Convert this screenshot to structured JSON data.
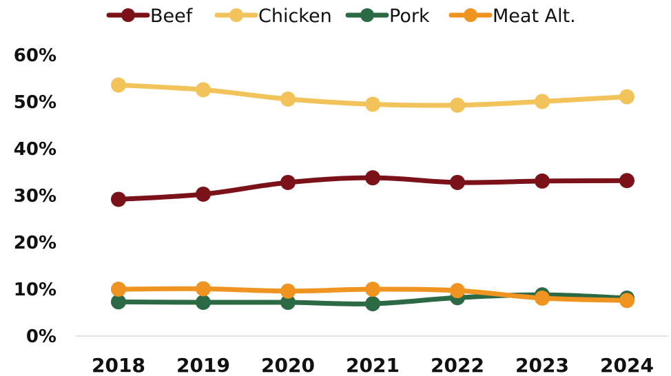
{
  "chart_data": {
    "type": "line",
    "x": [
      "2018",
      "2019",
      "2020",
      "2021",
      "2022",
      "2023",
      "2024"
    ],
    "yticks": [
      "0%",
      "10%",
      "20%",
      "30%",
      "40%",
      "50%",
      "60%"
    ],
    "ylim": [
      0,
      60
    ],
    "legend_position": "top",
    "grid": false,
    "series": [
      {
        "name": "Beef",
        "color": "#7b1219",
        "values": [
          29.2,
          30.3,
          32.8,
          33.8,
          32.8,
          33.1,
          33.2
        ]
      },
      {
        "name": "Chicken",
        "color": "#f2c35a",
        "values": [
          53.6,
          52.6,
          50.6,
          49.5,
          49.3,
          50.1,
          51.1
        ]
      },
      {
        "name": "Pork",
        "color": "#2c6a45",
        "values": [
          7.3,
          7.2,
          7.2,
          6.9,
          8.2,
          8.8,
          8.1
        ]
      },
      {
        "name": "Meat Alt.",
        "color": "#ef9321",
        "values": [
          10.0,
          10.1,
          9.6,
          10.0,
          9.7,
          8.1,
          7.6
        ]
      }
    ]
  }
}
